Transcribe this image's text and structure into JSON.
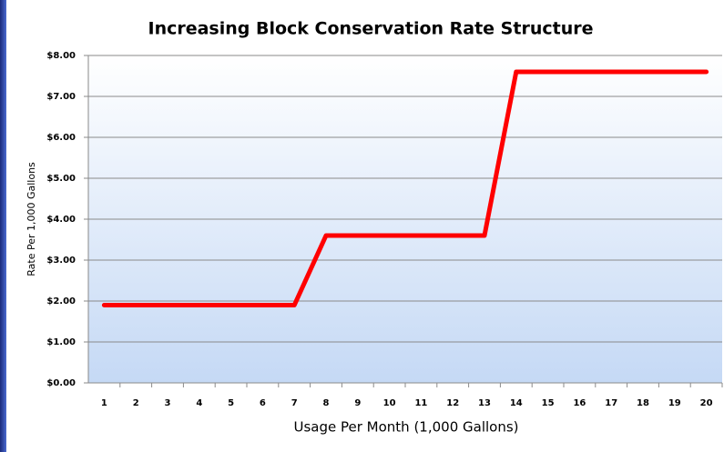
{
  "chart_data": {
    "type": "line",
    "title": "Increasing Block Conservation Rate Structure",
    "x_label": "Usage Per Month (1,000 Gallons)",
    "y_label": "Rate Per 1,000 Gallons",
    "categories": [
      "1",
      "2",
      "3",
      "4",
      "5",
      "6",
      "7",
      "8",
      "9",
      "10",
      "11",
      "12",
      "13",
      "14",
      "15",
      "16",
      "17",
      "18",
      "19",
      "20"
    ],
    "series": [
      {
        "name": "Rate",
        "color": "#ff0000",
        "values": [
          1.9,
          1.9,
          1.9,
          1.9,
          1.9,
          1.9,
          1.9,
          3.6,
          3.6,
          3.6,
          3.6,
          3.6,
          3.6,
          7.6,
          7.6,
          7.6,
          7.6,
          7.6,
          7.6,
          7.6
        ]
      }
    ],
    "ylim": [
      0,
      8
    ],
    "yticks": [
      {
        "value": 0,
        "label": "$0.00"
      },
      {
        "value": 1,
        "label": "$1.00"
      },
      {
        "value": 2,
        "label": "$2.00"
      },
      {
        "value": 3,
        "label": "$3.00"
      },
      {
        "value": 4,
        "label": "$4.00"
      },
      {
        "value": 5,
        "label": "$5.00"
      },
      {
        "value": 6,
        "label": "$6.00"
      },
      {
        "value": 7,
        "label": "$7.00"
      },
      {
        "value": 8,
        "label": "$8.00"
      }
    ],
    "grid": true
  }
}
